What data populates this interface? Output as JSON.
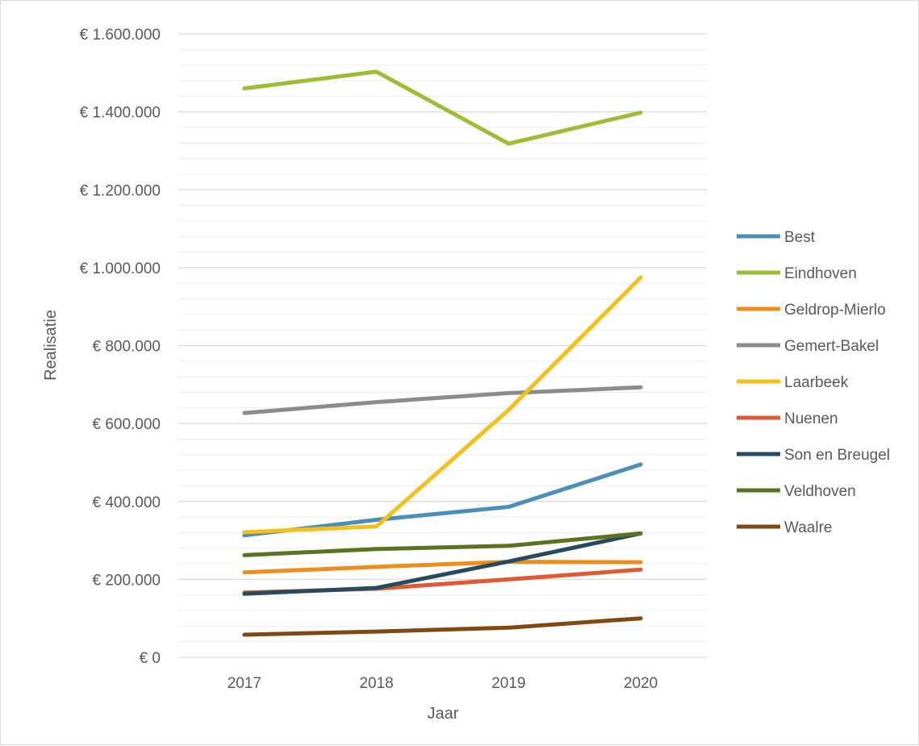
{
  "chart_data": {
    "type": "line",
    "title": "",
    "xlabel": "Jaar",
    "ylabel": "Realisatie",
    "x": [
      "2017",
      "2018",
      "2019",
      "2020"
    ],
    "ylim": [
      0,
      1600000
    ],
    "y_ticks": [
      {
        "value": 0,
        "label": "€ 0"
      },
      {
        "value": 200000,
        "label": "€ 200.000"
      },
      {
        "value": 400000,
        "label": "€ 400.000"
      },
      {
        "value": 600000,
        "label": "€ 600.000"
      },
      {
        "value": 800000,
        "label": "€ 800.000"
      },
      {
        "value": 1000000,
        "label": "€ 1.000.000"
      },
      {
        "value": 1200000,
        "label": "€ 1.200.000"
      },
      {
        "value": 1400000,
        "label": "€ 1.400.000"
      },
      {
        "value": 1600000,
        "label": "€ 1.600.000"
      }
    ],
    "grid": true,
    "legend_position": "right",
    "series": [
      {
        "name": "Best",
        "color": "#4a8fb8",
        "values": [
          313000,
          353000,
          386000,
          495000
        ]
      },
      {
        "name": "Eindhoven",
        "color": "#9ebd34",
        "values": [
          1460000,
          1503000,
          1318000,
          1398000
        ]
      },
      {
        "name": "Geldrop-Mierlo",
        "color": "#ee8d1c",
        "values": [
          218000,
          232000,
          245000,
          244000
        ]
      },
      {
        "name": "Gemert-Bakel",
        "color": "#8c8c8c",
        "values": [
          627000,
          655000,
          678000,
          693000
        ]
      },
      {
        "name": "Laarbeek",
        "color": "#f5c018",
        "values": [
          321000,
          336000,
          635000,
          975000
        ]
      },
      {
        "name": "Nuenen",
        "color": "#df5a34",
        "values": [
          166000,
          176000,
          200000,
          225000
        ]
      },
      {
        "name": "Son en Breugel",
        "color": "#264a60",
        "values": [
          163000,
          178000,
          246000,
          318000
        ]
      },
      {
        "name": "Veldhoven",
        "color": "#5b7220",
        "values": [
          262000,
          278000,
          286000,
          318000
        ]
      },
      {
        "name": "Waalre",
        "color": "#7f4a12",
        "values": [
          58000,
          66000,
          76000,
          100000
        ]
      }
    ]
  }
}
